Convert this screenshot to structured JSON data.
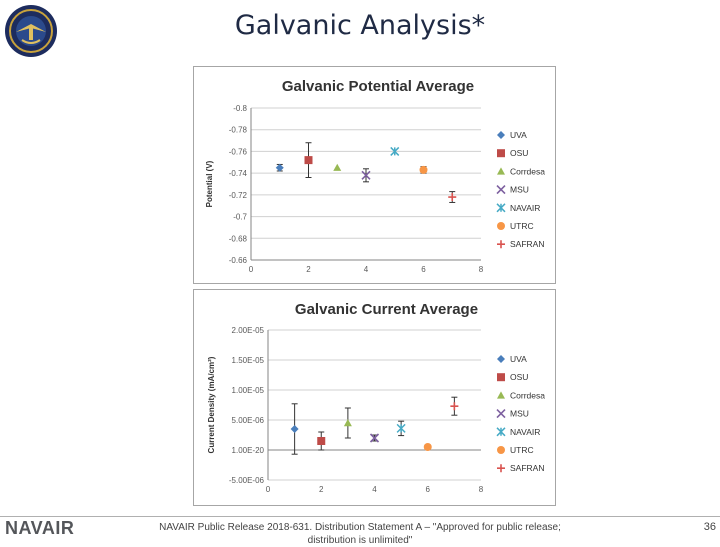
{
  "slide": {
    "title": "Galvanic Analysis*",
    "brand": "NAVAIR",
    "footer_text": "NAVAIR Public Release 2018-631. Distribution Statement A – \"Approved for public release; distribution is unlimited\"",
    "page_number": "36"
  },
  "colors": {
    "UVA": "#4a7ebb",
    "OSU": "#be4b48",
    "Corrdesa": "#98b954",
    "MSU": "#7d60a0",
    "NAVAIR": "#46aac5",
    "UTRC": "#f79646",
    "SAFRAN": "#d9534f"
  },
  "chart_data": [
    {
      "type": "scatter",
      "title": "Galvanic Potential Average",
      "xlabel": "",
      "ylabel": "Potential (V)",
      "xlim": [
        0,
        8
      ],
      "ylim": [
        -0.8,
        -0.66
      ],
      "y_reversed": true,
      "x_ticks": [
        "0",
        "2",
        "4",
        "6",
        "8"
      ],
      "y_ticks": [
        "-0.8",
        "-0.78",
        "-0.76",
        "-0.74",
        "-0.72",
        "-0.7",
        "-0.68",
        "-0.66"
      ],
      "grid": true,
      "legend": "right",
      "series": [
        {
          "name": "UVA",
          "marker": "diamond",
          "x": 1,
          "y": -0.745,
          "err": 0.003
        },
        {
          "name": "OSU",
          "marker": "square",
          "x": 2,
          "y": -0.752,
          "err": 0.016
        },
        {
          "name": "Corrdesa",
          "marker": "triangle",
          "x": 3,
          "y": -0.745,
          "err": 0
        },
        {
          "name": "MSU",
          "marker": "x",
          "x": 4,
          "y": -0.738,
          "err": 0.006
        },
        {
          "name": "NAVAIR",
          "marker": "star",
          "x": 5,
          "y": -0.76,
          "err": 0
        },
        {
          "name": "UTRC",
          "marker": "circle",
          "x": 6,
          "y": -0.743,
          "err": 0.003
        },
        {
          "name": "SAFRAN",
          "marker": "plus",
          "x": 7,
          "y": -0.718,
          "err": 0.005
        }
      ]
    },
    {
      "type": "scatter",
      "title": "Galvanic Current Average",
      "xlabel": "",
      "ylabel": "Current Density (mA/cm²)",
      "xlim": [
        0,
        8
      ],
      "ylim": [
        -5e-06,
        2e-05
      ],
      "x_ticks": [
        "0",
        "2",
        "4",
        "6",
        "8"
      ],
      "y_ticks": [
        "2.00E-05",
        "1.50E-05",
        "1.00E-05",
        "5.00E-06",
        "1.00E-20",
        "-5.00E-06"
      ],
      "grid": true,
      "legend": "right",
      "series": [
        {
          "name": "UVA",
          "marker": "diamond",
          "x": 1,
          "y": 3.5e-06,
          "err": 4.2e-06
        },
        {
          "name": "OSU",
          "marker": "square",
          "x": 2,
          "y": 1.5e-06,
          "err": 1.5e-06
        },
        {
          "name": "Corrdesa",
          "marker": "triangle",
          "x": 3,
          "y": 4.5e-06,
          "err": 2.5e-06
        },
        {
          "name": "MSU",
          "marker": "x",
          "x": 4,
          "y": 2e-06,
          "err": 5e-07
        },
        {
          "name": "NAVAIR",
          "marker": "star",
          "x": 5,
          "y": 3.6e-06,
          "err": 1.2e-06
        },
        {
          "name": "UTRC",
          "marker": "circle",
          "x": 6,
          "y": 5e-07,
          "err": 0
        },
        {
          "name": "SAFRAN",
          "marker": "plus",
          "x": 7,
          "y": 7.3e-06,
          "err": 1.5e-06
        }
      ]
    }
  ]
}
